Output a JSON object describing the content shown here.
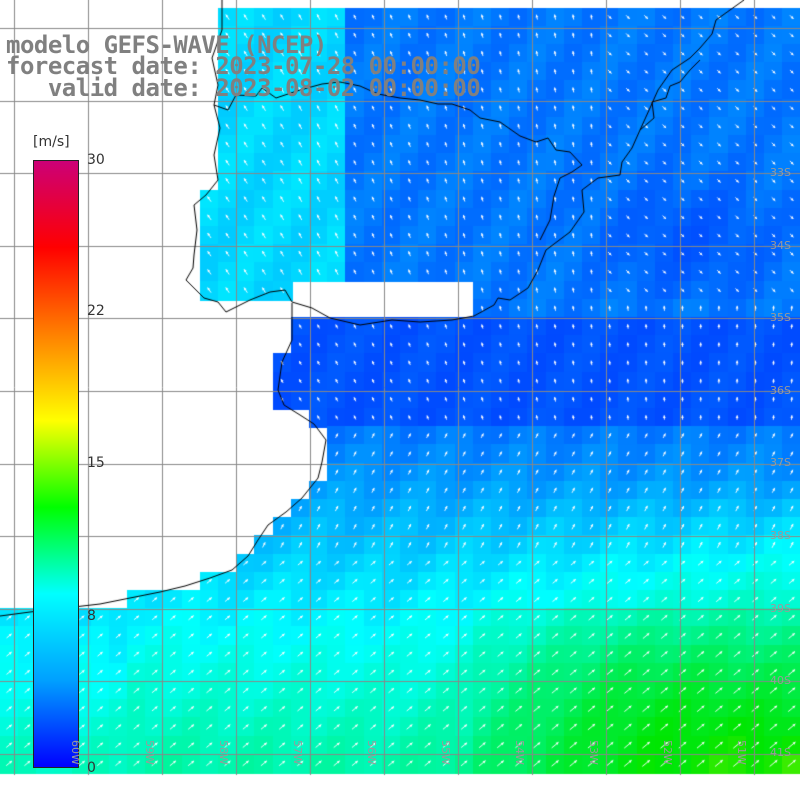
{
  "title": {
    "line1": "modelo GEFS-WAVE (NCEP)",
    "line2": "forecast date: 2023-07-28 00:00:00",
    "line3": "   valid date: 2023-08-02 00:00:00"
  },
  "colorbar": {
    "unit": "[m/s]",
    "min": 0,
    "max": 30,
    "ticks": [
      "30",
      "22",
      "15",
      "8",
      "0"
    ],
    "tick_values": [
      30,
      22,
      15,
      8,
      0
    ],
    "colors": [
      "#0000ff",
      "#00a0ff",
      "#00ffff",
      "#00ff00",
      "#ffff00",
      "#ff8000",
      "#ff0000",
      "#cc0077"
    ]
  },
  "map": {
    "model": "GEFS-WAVE",
    "variable": "wind speed and direction",
    "lat_labels": [
      "33S",
      "34S",
      "35S",
      "36S",
      "37S",
      "38S",
      "39S",
      "40S",
      "41S"
    ],
    "lon_labels": [
      "60W",
      "59W",
      "58W",
      "57W",
      "56W",
      "55W",
      "54W",
      "53W",
      "52W",
      "51W"
    ],
    "land_color": "#ffffff",
    "coast_color": "#000000",
    "grid_color": "#888888"
  }
}
